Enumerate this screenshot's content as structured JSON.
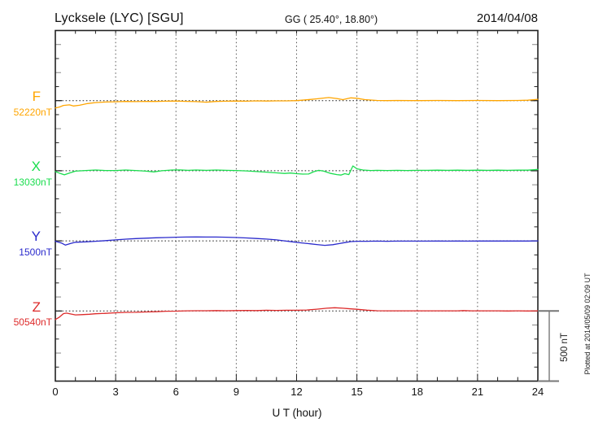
{
  "header": {
    "station_title": "Lycksele (LYC)  [SGU]",
    "gg_coords": "GG ( 25.40°,  18.80°)",
    "date": "2014/04/08"
  },
  "xaxis": {
    "label": "U T (hour)",
    "ticks": [
      "0",
      "3",
      "6",
      "9",
      "12",
      "15",
      "18",
      "21",
      "24"
    ]
  },
  "scale_bar": {
    "label": "500 nT"
  },
  "plot_note": "Plotted at 2014/05/09 02:09 UT",
  "components": [
    {
      "label": "F",
      "baseline_value": "52220nT",
      "color": "#FFA500"
    },
    {
      "label": "X",
      "baseline_value": "13030nT",
      "color": "#1ADD4E"
    },
    {
      "label": "Y",
      "baseline_value": "1500nT",
      "color": "#2A2ACC"
    },
    {
      "label": "Z",
      "baseline_value": "50540nT",
      "color": "#DD2A2A"
    }
  ],
  "chart_data": {
    "type": "line",
    "title": "Lycksele (LYC) [SGU] magnetogram for 2014/04/08",
    "xlabel": "U T (hour)",
    "x_range_hours": [
      0,
      24
    ],
    "x_ticks_hours": [
      0,
      3,
      6,
      9,
      12,
      15,
      18,
      21,
      24
    ],
    "scale_bar_nT": 500,
    "grid": "dotted vertical lines every 3 hours; dotted horizontal baseline per component",
    "legend_position": "left margin (component letter + baseline value)",
    "series": [
      {
        "name": "F",
        "baseline_nT": 52220,
        "color": "#FFA500",
        "points_hour_offset_nT": [
          [
            0,
            -52
          ],
          [
            0.2,
            -46
          ],
          [
            0.4,
            -34
          ],
          [
            0.7,
            -30
          ],
          [
            0.9,
            -38
          ],
          [
            1.2,
            -33
          ],
          [
            1.6,
            -21
          ],
          [
            2,
            -14
          ],
          [
            2.5,
            -10
          ],
          [
            3,
            -8
          ],
          [
            3.5,
            -6
          ],
          [
            4,
            -7
          ],
          [
            4.5,
            -5
          ],
          [
            5,
            -6
          ],
          [
            5.5,
            -4
          ],
          [
            6,
            -3
          ],
          [
            6.5,
            -5
          ],
          [
            7,
            -7
          ],
          [
            7.5,
            -11
          ],
          [
            8,
            -6
          ],
          [
            8.5,
            -4
          ],
          [
            9,
            -3
          ],
          [
            9.5,
            -4
          ],
          [
            10,
            -2
          ],
          [
            10.5,
            -3
          ],
          [
            11,
            -2
          ],
          [
            11.5,
            -2
          ],
          [
            12,
            0
          ],
          [
            12.5,
            6
          ],
          [
            13,
            13
          ],
          [
            13.6,
            22
          ],
          [
            14,
            15
          ],
          [
            14.3,
            7
          ],
          [
            14.7,
            20
          ],
          [
            15,
            17
          ],
          [
            15.4,
            7
          ],
          [
            16,
            1
          ],
          [
            16.5,
            0
          ],
          [
            17,
            1
          ],
          [
            18,
            0
          ],
          [
            19,
            1
          ],
          [
            20,
            0
          ],
          [
            21,
            1
          ],
          [
            22,
            0
          ],
          [
            23,
            1
          ],
          [
            23.5,
            3
          ],
          [
            24,
            9
          ]
        ]
      },
      {
        "name": "X",
        "baseline_nT": 13030,
        "color": "#1ADD4E",
        "points_hour_offset_nT": [
          [
            0,
            -6
          ],
          [
            0.25,
            -20
          ],
          [
            0.45,
            -29
          ],
          [
            0.7,
            -17
          ],
          [
            1,
            -3
          ],
          [
            1.5,
            2
          ],
          [
            2,
            5
          ],
          [
            2.5,
            2
          ],
          [
            3,
            2
          ],
          [
            3.5,
            5
          ],
          [
            4,
            2
          ],
          [
            4.5,
            -3
          ],
          [
            4.9,
            -8
          ],
          [
            5.3,
            0
          ],
          [
            5.8,
            5
          ],
          [
            6.2,
            6
          ],
          [
            6.6,
            3
          ],
          [
            7,
            5
          ],
          [
            7.5,
            3
          ],
          [
            8,
            5
          ],
          [
            8.5,
            3
          ],
          [
            9,
            2
          ],
          [
            9.5,
            -1
          ],
          [
            10,
            -6
          ],
          [
            10.5,
            -10
          ],
          [
            11,
            -15
          ],
          [
            11.4,
            -19
          ],
          [
            11.7,
            -16
          ],
          [
            12,
            -21
          ],
          [
            12.3,
            -24
          ],
          [
            12.6,
            -23
          ],
          [
            12.85,
            -7
          ],
          [
            13.1,
            3
          ],
          [
            13.35,
            -3
          ],
          [
            13.7,
            -19
          ],
          [
            14,
            -27
          ],
          [
            14.2,
            -31
          ],
          [
            14.4,
            -21
          ],
          [
            14.6,
            -27
          ],
          [
            14.8,
            34
          ],
          [
            15,
            14
          ],
          [
            15.3,
            5
          ],
          [
            15.7,
            2
          ],
          [
            16,
            3
          ],
          [
            16.5,
            2
          ],
          [
            17,
            3
          ],
          [
            17.5,
            2
          ],
          [
            18,
            3
          ],
          [
            18.5,
            3
          ],
          [
            19,
            4
          ],
          [
            19.5,
            3
          ],
          [
            20,
            4
          ],
          [
            20.5,
            3
          ],
          [
            21,
            4
          ],
          [
            21.5,
            3
          ],
          [
            22,
            4
          ],
          [
            22.5,
            3
          ],
          [
            23,
            4
          ],
          [
            23.5,
            4
          ],
          [
            23.8,
            7
          ],
          [
            24,
            9
          ]
        ]
      },
      {
        "name": "Y",
        "baseline_nT": 1500,
        "color": "#2A2ACC",
        "points_hour_offset_nT": [
          [
            0,
            -3
          ],
          [
            0.3,
            -15
          ],
          [
            0.5,
            -30
          ],
          [
            0.75,
            -19
          ],
          [
            1,
            -10
          ],
          [
            1.5,
            -7
          ],
          [
            2,
            -3
          ],
          [
            2.5,
            2
          ],
          [
            3,
            7
          ],
          [
            3.5,
            12
          ],
          [
            4,
            16
          ],
          [
            4.5,
            19
          ],
          [
            5,
            22
          ],
          [
            5.5,
            24
          ],
          [
            6,
            26
          ],
          [
            6.5,
            27
          ],
          [
            7,
            28
          ],
          [
            7.5,
            27
          ],
          [
            8,
            27
          ],
          [
            8.5,
            26
          ],
          [
            9,
            24
          ],
          [
            9.5,
            21
          ],
          [
            10,
            17
          ],
          [
            10.5,
            13
          ],
          [
            11,
            7
          ],
          [
            11.4,
            0
          ],
          [
            11.8,
            -7
          ],
          [
            12.2,
            -14
          ],
          [
            12.6,
            -20
          ],
          [
            13,
            -26
          ],
          [
            13.4,
            -32
          ],
          [
            13.8,
            -27
          ],
          [
            14.1,
            -20
          ],
          [
            14.4,
            -12
          ],
          [
            14.7,
            -5
          ],
          [
            15,
            -3
          ],
          [
            15.5,
            -3
          ],
          [
            16,
            -2
          ],
          [
            16.5,
            -3
          ],
          [
            17,
            -2
          ],
          [
            17.5,
            -2
          ],
          [
            18,
            -2
          ],
          [
            18.5,
            -2
          ],
          [
            19,
            -1
          ],
          [
            19.5,
            -2
          ],
          [
            20,
            -1
          ],
          [
            20.5,
            -2
          ],
          [
            21,
            -1
          ],
          [
            21.5,
            -1
          ],
          [
            22,
            -1
          ],
          [
            22.5,
            -1
          ],
          [
            23,
            -1
          ],
          [
            23.5,
            -1
          ],
          [
            24,
            0
          ]
        ]
      },
      {
        "name": "Z",
        "baseline_nT": 50540,
        "color": "#DD2A2A",
        "points_hour_offset_nT": [
          [
            0,
            -61
          ],
          [
            0.2,
            -44
          ],
          [
            0.4,
            -19
          ],
          [
            0.55,
            -15
          ],
          [
            0.75,
            -21
          ],
          [
            1,
            -28
          ],
          [
            1.3,
            -26
          ],
          [
            1.7,
            -23
          ],
          [
            2,
            -20
          ],
          [
            2.5,
            -17
          ],
          [
            3,
            -13
          ],
          [
            3.5,
            -10
          ],
          [
            4,
            -9
          ],
          [
            4.5,
            -7
          ],
          [
            5,
            -5
          ],
          [
            5.5,
            -2
          ],
          [
            6,
            -1
          ],
          [
            6.5,
            1
          ],
          [
            7,
            2
          ],
          [
            7.5,
            2
          ],
          [
            8,
            3
          ],
          [
            8.5,
            2
          ],
          [
            9,
            3
          ],
          [
            9.5,
            4
          ],
          [
            10,
            3
          ],
          [
            10.5,
            5
          ],
          [
            11,
            4
          ],
          [
            11.5,
            5
          ],
          [
            12,
            5
          ],
          [
            12.5,
            7
          ],
          [
            13,
            13
          ],
          [
            13.5,
            20
          ],
          [
            13.9,
            23
          ],
          [
            14.3,
            20
          ],
          [
            14.7,
            15
          ],
          [
            15,
            12
          ],
          [
            15.5,
            6
          ],
          [
            16,
            2
          ],
          [
            16.5,
            1
          ],
          [
            17,
            1
          ],
          [
            17.5,
            1
          ],
          [
            18,
            1
          ],
          [
            18.5,
            1
          ],
          [
            19,
            1
          ],
          [
            19.5,
            1
          ],
          [
            20,
            1
          ],
          [
            20.3,
            3
          ],
          [
            20.7,
            1
          ],
          [
            21,
            1
          ],
          [
            21.5,
            1
          ],
          [
            22,
            1
          ],
          [
            22.5,
            0
          ],
          [
            23,
            1
          ],
          [
            23.5,
            0
          ],
          [
            24,
            1
          ]
        ]
      }
    ]
  }
}
